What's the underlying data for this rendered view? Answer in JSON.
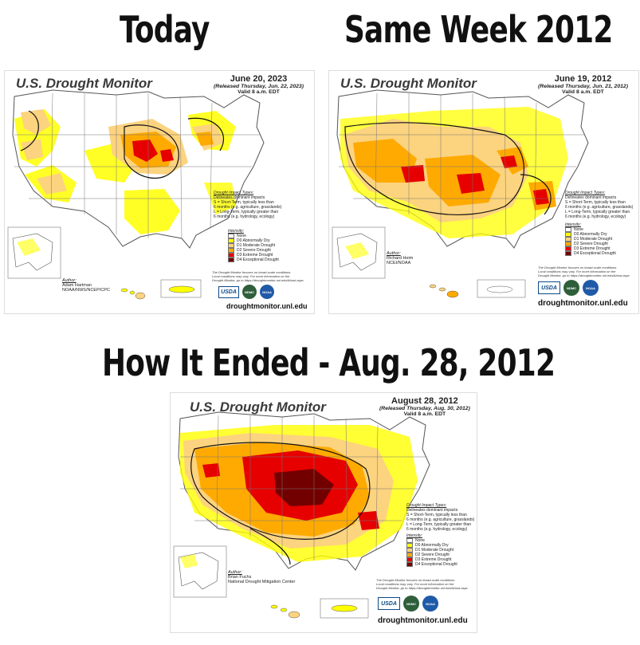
{
  "headings": {
    "left": "Today",
    "right": "Same Week 2012",
    "bottom": "How It Ended - Aug. 28, 2012"
  },
  "common": {
    "title": "U.S. Drought Monitor",
    "impact_title": "Drought Impact Types:",
    "impact_line1": "Delineates dominant impacts",
    "impact_s1": "S = Short-Term, typically less than",
    "impact_s2": "6 months (e.g. agriculture, grasslands)",
    "impact_l1": "L = Long-Term, typically greater than",
    "impact_l2": "6 months (e.g. hydrology, ecology)",
    "intensity_title": "Intensity:",
    "intensity": [
      {
        "label": "None",
        "color": "#ffffff"
      },
      {
        "label": "D0 Abnormally Dry",
        "color": "#ffff00"
      },
      {
        "label": "D1 Moderate Drought",
        "color": "#fcd37f"
      },
      {
        "label": "D2 Severe Drought",
        "color": "#ffaa00"
      },
      {
        "label": "D3 Extreme Drought",
        "color": "#e60000"
      },
      {
        "label": "D4 Exceptional Drought",
        "color": "#730000"
      }
    ],
    "author_title": "Author:",
    "note1": "The Drought Monitor focuses on broad-scale conditions.",
    "note2": "Local conditions may vary. For more information on the",
    "note3": "Drought Monitor, go to https://droughtmonitor.unl.edu/About.aspx",
    "logo_usda": "USDA",
    "logo_ndmc": "NDMC",
    "logo_noaa": "NOAA",
    "url": "droughtmonitor.unl.edu"
  },
  "maps": {
    "today": {
      "date": "June 20, 2023",
      "released": "(Released Thursday, Jun. 22, 2023)",
      "valid": "Valid 8 a.m. EDT",
      "author_name": "Adam Hartman",
      "author_org": "NOAA/NWS/NCEP/CPC"
    },
    "week2012": {
      "date": "June 19, 2012",
      "released": "(Released Thursday, Jun. 21, 2012)",
      "valid": "Valid 8 a.m. EDT",
      "author_name": "Richard Heim",
      "author_org": "NCEI/NOAA"
    },
    "aug2012": {
      "date": "August 28, 2012",
      "released": "(Released Thursday, Aug. 30, 2012)",
      "valid": "Valid 8 a.m. EDT",
      "author_name": "Brian Fuchs",
      "author_org": "National Drought Mitigation Center"
    }
  }
}
